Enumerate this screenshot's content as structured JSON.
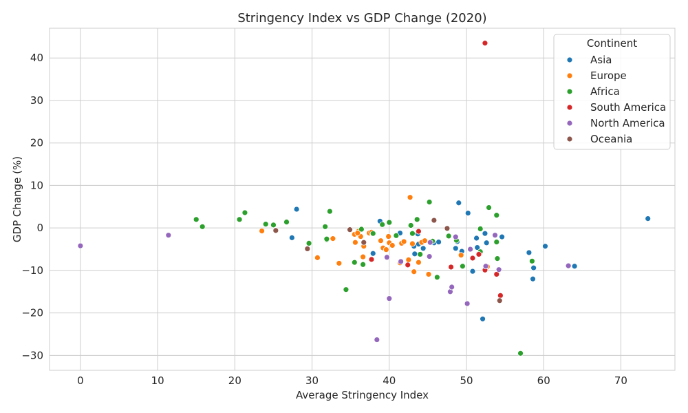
{
  "chart_data": {
    "type": "scatter",
    "title": "Stringency Index vs GDP Change (2020)",
    "xlabel": "Average Stringency Index",
    "ylabel": "GDP Change (%)",
    "xlim": [
      -4,
      77
    ],
    "ylim": [
      -33.5,
      47
    ],
    "xticks": [
      0,
      10,
      20,
      30,
      40,
      50,
      60,
      70
    ],
    "yticks": [
      -30,
      -20,
      -10,
      0,
      10,
      20,
      30,
      40
    ],
    "grid": true,
    "legend": {
      "title": "Continent",
      "placement": "top-right"
    },
    "series": [
      {
        "name": "Asia",
        "color": "#1f77b4",
        "points": [
          [
            28.0,
            4.4
          ],
          [
            27.4,
            -2.3
          ],
          [
            38.8,
            1.6
          ],
          [
            37.9,
            -6.0
          ],
          [
            41.4,
            -1.2
          ],
          [
            43.2,
            -4.3
          ],
          [
            43.3,
            -6.1
          ],
          [
            43.7,
            -1.4
          ],
          [
            44.4,
            -4.8
          ],
          [
            45.8,
            -3.5
          ],
          [
            46.4,
            -3.3
          ],
          [
            48.6,
            -4.8
          ],
          [
            49.0,
            5.9
          ],
          [
            49.4,
            -5.5
          ],
          [
            50.2,
            3.5
          ],
          [
            50.8,
            -10.2
          ],
          [
            51.3,
            -2.4
          ],
          [
            51.4,
            -4.6
          ],
          [
            52.4,
            -1.3
          ],
          [
            52.6,
            -3.5
          ],
          [
            54.6,
            -2.1
          ],
          [
            52.1,
            -21.4
          ],
          [
            58.1,
            -5.8
          ],
          [
            58.7,
            -9.4
          ],
          [
            58.6,
            -12.0
          ],
          [
            60.2,
            -4.3
          ],
          [
            64.0,
            -9.0
          ],
          [
            73.5,
            2.2
          ],
          [
            43.8,
            -3.8
          ],
          [
            48.8,
            -3.2
          ]
        ]
      },
      {
        "name": "Europe",
        "color": "#ff7f0e",
        "points": [
          [
            23.5,
            -0.7
          ],
          [
            30.7,
            -7.0
          ],
          [
            32.7,
            -2.5
          ],
          [
            33.5,
            -8.3
          ],
          [
            35.5,
            -1.5
          ],
          [
            35.6,
            -3.4
          ],
          [
            36.0,
            -0.8
          ],
          [
            36.3,
            -2.0
          ],
          [
            36.6,
            -6.8
          ],
          [
            36.7,
            -4.3
          ],
          [
            37.4,
            -1.2
          ],
          [
            37.7,
            -1.0
          ],
          [
            38.9,
            -3.0
          ],
          [
            39.2,
            -4.7
          ],
          [
            39.6,
            -5.1
          ],
          [
            39.9,
            -2.0
          ],
          [
            40.0,
            -3.5
          ],
          [
            40.4,
            -4.1
          ],
          [
            41.4,
            -8.2
          ],
          [
            41.6,
            -3.6
          ],
          [
            41.9,
            -3.2
          ],
          [
            42.5,
            -7.5
          ],
          [
            42.7,
            7.2
          ],
          [
            43.0,
            -3.7
          ],
          [
            43.2,
            -10.3
          ],
          [
            43.8,
            -8.1
          ],
          [
            44.2,
            -3.4
          ],
          [
            45.1,
            -10.9
          ],
          [
            49.3,
            -6.4
          ],
          [
            52.7,
            -9.1
          ],
          [
            35.9,
            -1.2
          ],
          [
            44.6,
            -3.0
          ]
        ]
      },
      {
        "name": "Africa",
        "color": "#2ca02c",
        "points": [
          [
            15.0,
            2.0
          ],
          [
            15.8,
            0.3
          ],
          [
            20.6,
            2.0
          ],
          [
            21.3,
            3.6
          ],
          [
            24.0,
            0.9
          ],
          [
            25.0,
            0.7
          ],
          [
            26.7,
            1.4
          ],
          [
            29.6,
            -3.6
          ],
          [
            31.7,
            0.3
          ],
          [
            31.9,
            -2.8
          ],
          [
            32.3,
            3.9
          ],
          [
            34.4,
            -14.5
          ],
          [
            35.5,
            -8.1
          ],
          [
            36.4,
            -0.3
          ],
          [
            36.6,
            -8.6
          ],
          [
            37.9,
            -1.3
          ],
          [
            39.1,
            0.8
          ],
          [
            40.0,
            1.3
          ],
          [
            40.9,
            -1.8
          ],
          [
            42.8,
            0.6
          ],
          [
            43.0,
            -1.3
          ],
          [
            43.6,
            2.0
          ],
          [
            44.0,
            -6.2
          ],
          [
            45.2,
            6.1
          ],
          [
            45.6,
            -3.1
          ],
          [
            46.2,
            -11.6
          ],
          [
            47.7,
            -1.9
          ],
          [
            48.7,
            -2.9
          ],
          [
            49.5,
            -9.0
          ],
          [
            51.8,
            -0.2
          ],
          [
            51.8,
            -5.6
          ],
          [
            52.9,
            4.8
          ],
          [
            53.9,
            3.0
          ],
          [
            53.9,
            -3.3
          ],
          [
            54.0,
            -7.2
          ],
          [
            57.0,
            -29.5
          ],
          [
            58.5,
            -7.8
          ],
          [
            31.9,
            -2.6
          ]
        ]
      },
      {
        "name": "South America",
        "color": "#d62728",
        "points": [
          [
            37.7,
            -7.4
          ],
          [
            42.4,
            -8.7
          ],
          [
            43.8,
            -0.8
          ],
          [
            48.0,
            -9.2
          ],
          [
            50.8,
            -7.1
          ],
          [
            51.6,
            -6.2
          ],
          [
            52.4,
            -9.9
          ],
          [
            53.9,
            -10.9
          ],
          [
            54.4,
            -15.9
          ],
          [
            52.4,
            43.5
          ]
        ]
      },
      {
        "name": "North America",
        "color": "#9467bd",
        "points": [
          [
            0.0,
            -4.2
          ],
          [
            11.4,
            -1.7
          ],
          [
            38.4,
            -26.3
          ],
          [
            39.7,
            -6.9
          ],
          [
            40.0,
            -16.6
          ],
          [
            41.5,
            -7.9
          ],
          [
            45.2,
            -6.7
          ],
          [
            47.9,
            -15.0
          ],
          [
            48.1,
            -13.9
          ],
          [
            48.6,
            -2.1
          ],
          [
            50.1,
            -17.8
          ],
          [
            50.5,
            -5.0
          ],
          [
            52.5,
            -9.0
          ],
          [
            53.7,
            -1.7
          ],
          [
            54.2,
            -9.8
          ],
          [
            63.2,
            -8.9
          ],
          [
            45.3,
            -3.4
          ]
        ]
      },
      {
        "name": "Oceania",
        "color": "#8c564b",
        "points": [
          [
            25.3,
            -0.6
          ],
          [
            29.4,
            -4.9
          ],
          [
            34.9,
            -0.4
          ],
          [
            36.7,
            -3.4
          ],
          [
            45.8,
            1.8
          ],
          [
            47.5,
            -0.1
          ],
          [
            54.3,
            -17.1
          ]
        ]
      }
    ]
  }
}
